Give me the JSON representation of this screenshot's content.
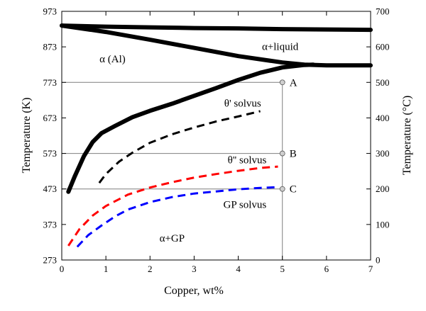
{
  "chart_data": {
    "type": "line",
    "xlabel": "Copper, wt%",
    "ylabel_left": "Temperature (K)",
    "ylabel_right": "Temperature (°C)",
    "xlim": [
      0,
      7
    ],
    "ylim": [
      273,
      973
    ],
    "x_ticks": [
      "0",
      "1",
      "2",
      "3",
      "4",
      "5",
      "6",
      "7"
    ],
    "y_ticks_left": [
      "273",
      "373",
      "473",
      "573",
      "673",
      "773",
      "873",
      "973"
    ],
    "y_ticks_right": [
      "0",
      "100",
      "200",
      "300",
      "400",
      "500",
      "600",
      "700"
    ],
    "grid": false,
    "series": [
      {
        "style": "solid",
        "color": "#000000",
        "x": [
          0,
          1,
          2,
          3,
          4,
          5,
          6,
          7
        ],
        "y": [
          933,
          930,
          928,
          926,
          925,
          923,
          922,
          921
        ]
      },
      {
        "style": "solid",
        "color": "#000000",
        "x": [
          0,
          1,
          2,
          3,
          4,
          5,
          5.5,
          6,
          7
        ],
        "y": [
          933,
          915,
          893,
          870,
          847,
          829,
          823,
          821,
          821
        ]
      },
      {
        "style": "solid",
        "color": "#000000",
        "x": [
          0.15,
          0.3,
          0.5,
          0.7,
          0.9,
          1.2,
          1.6,
          2.0,
          2.5,
          3.0,
          3.5,
          4.0,
          4.5,
          5.0,
          5.5,
          5.7
        ],
        "y": [
          465,
          510,
          565,
          605,
          630,
          650,
          675,
          693,
          713,
          735,
          757,
          780,
          800,
          815,
          822,
          823
        ]
      },
      {
        "style": "dashed",
        "color": "#000000",
        "x": [
          0.85,
          1.0,
          1.3,
          1.6,
          2.0,
          2.5,
          3.0,
          3.5,
          4.0,
          4.5
        ],
        "y": [
          490,
          515,
          550,
          575,
          603,
          627,
          646,
          663,
          677,
          692
        ]
      },
      {
        "style": "dashed",
        "color": "#ff0000",
        "x": [
          0.15,
          0.4,
          0.7,
          1.0,
          1.5,
          2.0,
          2.5,
          3.0,
          3.5,
          4.0,
          4.5,
          4.9
        ],
        "y": [
          313,
          360,
          398,
          425,
          457,
          477,
          492,
          505,
          515,
          524,
          532,
          536
        ]
      },
      {
        "style": "dashed",
        "color": "#0000ff",
        "x": [
          0.35,
          0.6,
          0.9,
          1.2,
          1.5,
          2.0,
          2.5,
          3.0,
          3.5,
          4.0,
          4.5,
          4.9
        ],
        "y": [
          310,
          343,
          370,
          395,
          415,
          436,
          450,
          460,
          466,
          472,
          476,
          478
        ]
      }
    ],
    "reference_lines": {
      "vertical_x": 5,
      "horizontal_y": [
        773,
        573,
        473
      ],
      "points": [
        {
          "label": "A",
          "x": 5,
          "y": 773
        },
        {
          "label": "B",
          "x": 5,
          "y": 573
        },
        {
          "label": "C",
          "x": 5,
          "y": 473
        }
      ],
      "line_color": "#7f7f7f",
      "point_color": "#cfcfcf"
    },
    "annotations": [
      {
        "text": "α (Al)",
        "x": 1.15,
        "y": 829
      },
      {
        "text": "α+liquid",
        "x": 4.95,
        "y": 864
      },
      {
        "text": "θ' solvus",
        "x": 4.1,
        "y": 705
      },
      {
        "text": "θ'' solvus",
        "x": 4.2,
        "y": 545
      },
      {
        "text": "GP solvus",
        "x": 4.15,
        "y": 420
      },
      {
        "text": "α+GP",
        "x": 2.5,
        "y": 325
      }
    ]
  }
}
